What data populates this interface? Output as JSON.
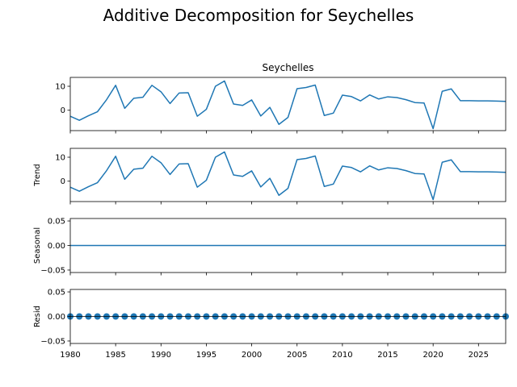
{
  "figure_title": "Additive Decomposition for Seychelles",
  "chart_data": {
    "type": "line",
    "title": "Additive Decomposition for Seychelles",
    "xlim": [
      1980,
      2028
    ],
    "x_ticks": [
      1980,
      1985,
      1990,
      1995,
      2000,
      2005,
      2010,
      2015,
      2020,
      2025
    ],
    "x": [
      1980,
      1981,
      1982,
      1983,
      1984,
      1985,
      1986,
      1987,
      1988,
      1989,
      1990,
      1991,
      1992,
      1993,
      1994,
      1995,
      1996,
      1997,
      1998,
      1999,
      2000,
      2001,
      2002,
      2003,
      2004,
      2005,
      2006,
      2007,
      2008,
      2009,
      2010,
      2011,
      2012,
      2013,
      2014,
      2015,
      2016,
      2017,
      2018,
      2019,
      2020,
      2021,
      2022,
      2023,
      2024,
      2025,
      2026,
      2027,
      2028
    ],
    "color": "#1f77b4",
    "panels": [
      {
        "key": "observed",
        "title": "Seychelles",
        "ylabel": "",
        "ylim": [
          -8.5,
          13.7
        ],
        "yticks": [
          0,
          10
        ],
        "ytick_labels": [
          "0",
          "10"
        ],
        "style": "line",
        "values": [
          -2.5,
          -4.2,
          -2.3,
          -0.6,
          4.4,
          10.4,
          0.8,
          5.0,
          5.4,
          10.4,
          7.7,
          2.8,
          7.2,
          7.3,
          -2.5,
          0.4,
          10.0,
          12.2,
          2.6,
          2.0,
          4.3,
          -2.4,
          1.2,
          -5.9,
          -3.0,
          9.0,
          9.5,
          10.5,
          -2.2,
          -1.2,
          6.3,
          5.7,
          3.9,
          6.4,
          4.7,
          5.6,
          5.3,
          4.4,
          3.2,
          3.0,
          -7.7,
          7.9,
          8.9,
          4.0,
          4.0,
          3.9,
          3.9,
          3.8,
          3.7
        ]
      },
      {
        "key": "trend",
        "title": "",
        "ylabel": "Trend",
        "ylim": [
          -8.5,
          13.7
        ],
        "yticks": [
          0,
          10
        ],
        "ytick_labels": [
          "0",
          "10"
        ],
        "style": "line",
        "values": [
          -2.5,
          -4.2,
          -2.3,
          -0.6,
          4.4,
          10.4,
          0.8,
          5.0,
          5.4,
          10.4,
          7.7,
          2.8,
          7.2,
          7.3,
          -2.5,
          0.4,
          10.0,
          12.2,
          2.6,
          2.0,
          4.3,
          -2.4,
          1.2,
          -5.9,
          -3.0,
          9.0,
          9.5,
          10.5,
          -2.2,
          -1.2,
          6.3,
          5.7,
          3.9,
          6.4,
          4.7,
          5.6,
          5.3,
          4.4,
          3.2,
          3.0,
          -7.7,
          7.9,
          8.9,
          4.0,
          4.0,
          3.9,
          3.9,
          3.8,
          3.7
        ]
      },
      {
        "key": "seasonal",
        "title": "",
        "ylabel": "Seasonal",
        "ylim": [
          -0.055,
          0.055
        ],
        "yticks": [
          -0.05,
          0,
          0.05
        ],
        "ytick_labels": [
          "−0.05",
          "0.00",
          "0.05"
        ],
        "style": "line",
        "values": [
          0,
          0,
          0,
          0,
          0,
          0,
          0,
          0,
          0,
          0,
          0,
          0,
          0,
          0,
          0,
          0,
          0,
          0,
          0,
          0,
          0,
          0,
          0,
          0,
          0,
          0,
          0,
          0,
          0,
          0,
          0,
          0,
          0,
          0,
          0,
          0,
          0,
          0,
          0,
          0,
          0,
          0,
          0,
          0,
          0,
          0,
          0,
          0,
          0
        ]
      },
      {
        "key": "resid",
        "title": "",
        "ylabel": "Resid",
        "ylim": [
          -0.055,
          0.055
        ],
        "yticks": [
          -0.05,
          0,
          0.05
        ],
        "ytick_labels": [
          "−0.05",
          "0.00",
          "0.05"
        ],
        "style": "markers",
        "values": [
          0,
          0,
          0,
          0,
          0,
          0,
          0,
          0,
          0,
          0,
          0,
          0,
          0,
          0,
          0,
          0,
          0,
          0,
          0,
          0,
          0,
          0,
          0,
          0,
          0,
          0,
          0,
          0,
          0,
          0,
          0,
          0,
          0,
          0,
          0,
          0,
          0,
          0,
          0,
          0,
          0,
          0,
          0,
          0,
          0,
          0,
          0,
          0,
          0
        ]
      }
    ]
  }
}
